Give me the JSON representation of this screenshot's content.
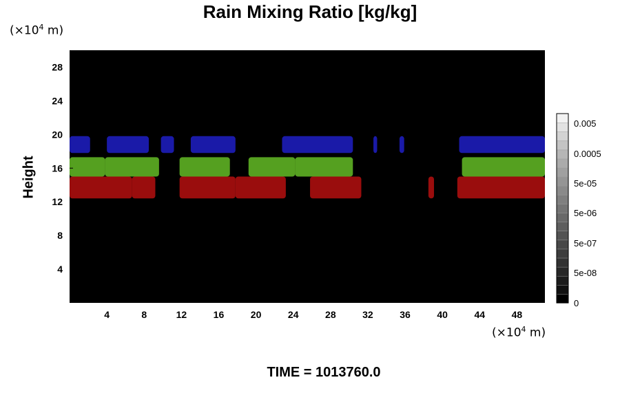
{
  "chart_data": {
    "type": "heatmap",
    "title": "Rain Mixing Ratio [kg/kg]",
    "ylabel": "Height",
    "x_unit": {
      "prefix": "(×10",
      "exp": "4",
      "suffix": " m)"
    },
    "y_unit": {
      "prefix": "(×10",
      "exp": "4",
      "suffix": " m)"
    },
    "xlim": [
      0,
      51
    ],
    "ylim": [
      0,
      30
    ],
    "x_ticks": [
      4,
      8,
      12,
      16,
      20,
      24,
      28,
      32,
      36,
      40,
      44,
      48
    ],
    "y_ticks": [
      4,
      8,
      12,
      16,
      20,
      24,
      28
    ],
    "background_color": "#000000",
    "bands": [
      {
        "color": "#1a1aa8",
        "y_range": [
          17.8,
          19.8
        ],
        "segments": [
          [
            0.0,
            2.2
          ],
          [
            4.0,
            8.5
          ],
          [
            9.8,
            11.2
          ],
          [
            13.0,
            17.8
          ],
          [
            22.8,
            30.4
          ],
          [
            32.6,
            33.0
          ],
          [
            35.4,
            35.9
          ],
          [
            41.8,
            51.0
          ]
        ]
      },
      {
        "color": "#55a020",
        "y_range": [
          15.0,
          17.3
        ],
        "segments": [
          [
            0.0,
            3.8
          ],
          [
            3.8,
            9.6
          ],
          [
            11.8,
            17.2
          ],
          [
            19.2,
            24.2
          ],
          [
            24.2,
            30.4
          ],
          [
            42.1,
            51.0
          ]
        ]
      },
      {
        "color": "#9a0d0d",
        "y_range": [
          12.4,
          15.0
        ],
        "segments": [
          [
            0.0,
            6.7
          ],
          [
            6.7,
            9.2
          ],
          [
            11.8,
            17.8
          ],
          [
            17.8,
            23.2
          ],
          [
            25.8,
            31.3
          ],
          [
            38.5,
            39.1
          ],
          [
            41.6,
            51.0
          ]
        ]
      }
    ],
    "colorbar": {
      "tick_labels": [
        "0.005",
        "0.0005",
        "5e-05",
        "5e-06",
        "5e-07",
        "5e-08",
        "0"
      ],
      "colors": [
        "#000000",
        "#111111",
        "#1c1c1c",
        "#272727",
        "#323232",
        "#3d3d3d",
        "#484848",
        "#535353",
        "#5e5e5e",
        "#696969",
        "#747474",
        "#7f7f7f",
        "#8a8a8a",
        "#959595",
        "#a0a0a0",
        "#ababab",
        "#b6b6b6",
        "#c4c4c4",
        "#d3d3d3",
        "#e2e2e2",
        "#f2f2f2"
      ]
    }
  },
  "footer": {
    "time_label": "TIME = 1013760.0"
  }
}
